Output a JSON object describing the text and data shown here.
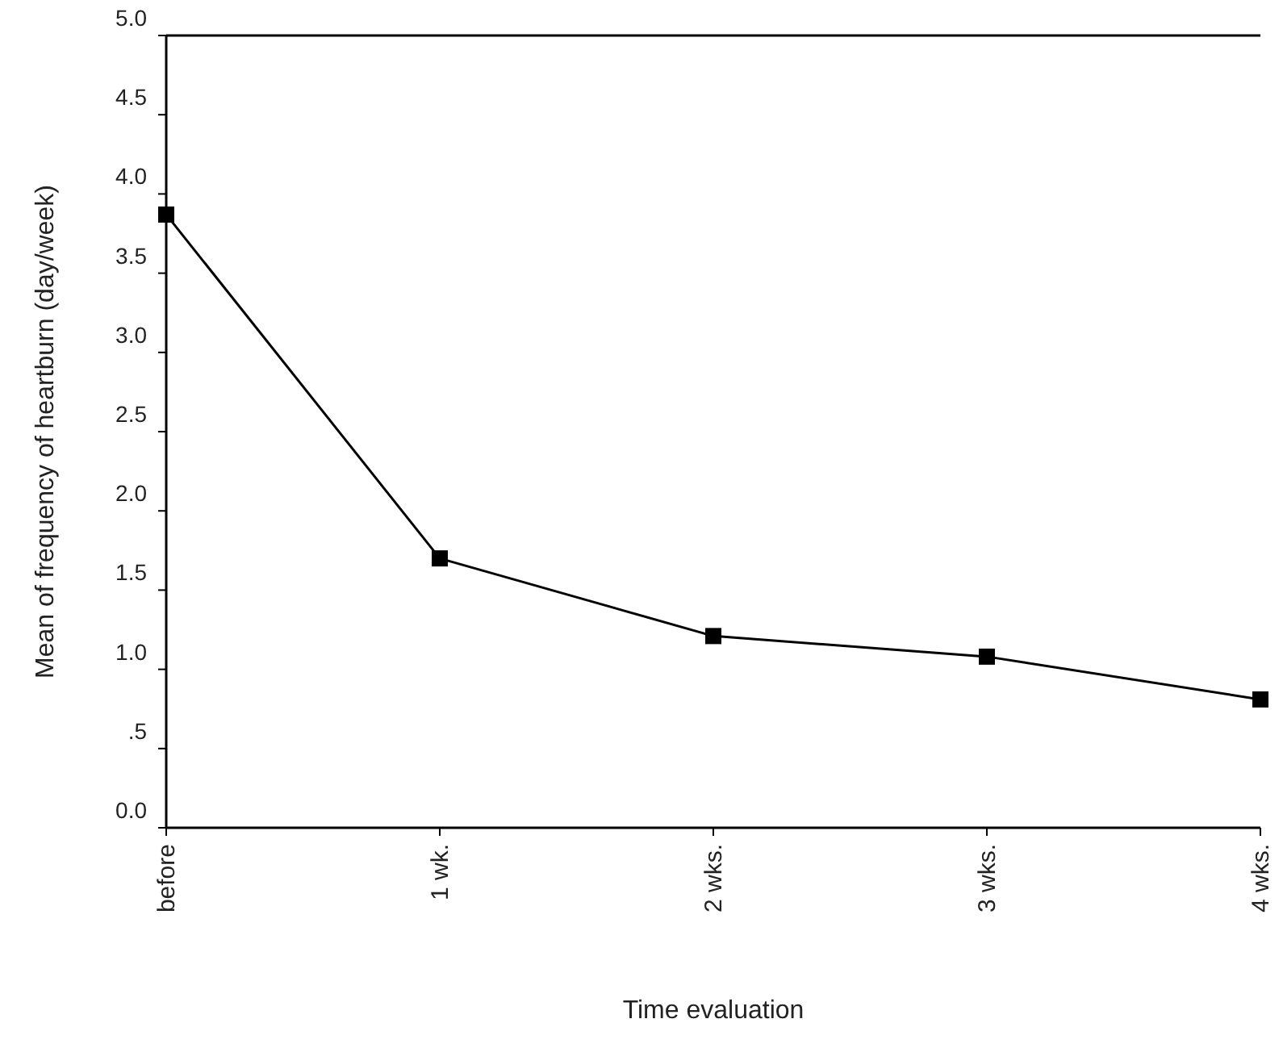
{
  "chart_data": {
    "type": "line",
    "xlabel": "Time evaluation",
    "ylabel": "Mean of frequency of heartburn (day/week)",
    "categories": [
      "before",
      "1 wk.",
      "2 wks.",
      "3 wks.",
      "4 wks."
    ],
    "series": [
      {
        "color": "#000000",
        "values": [
          3.87,
          1.7,
          1.21,
          1.08,
          0.81
        ]
      }
    ],
    "ylim": [
      0,
      5
    ],
    "yticks": [
      {
        "value": 0,
        "label": "0.0"
      },
      {
        "value": 0.5,
        "label": ".5"
      },
      {
        "value": 1,
        "label": "1.0"
      },
      {
        "value": 1.5,
        "label": "1.5"
      },
      {
        "value": 2,
        "label": "2.0"
      },
      {
        "value": 2.5,
        "label": "2.5"
      },
      {
        "value": 3,
        "label": "3.0"
      },
      {
        "value": 3.5,
        "label": "3.5"
      },
      {
        "value": 4,
        "label": "4.0"
      },
      {
        "value": 4.5,
        "label": "4.5"
      },
      {
        "value": 5,
        "label": "5.0"
      }
    ],
    "marker": "square",
    "line_style": "solid",
    "grid": false
  }
}
